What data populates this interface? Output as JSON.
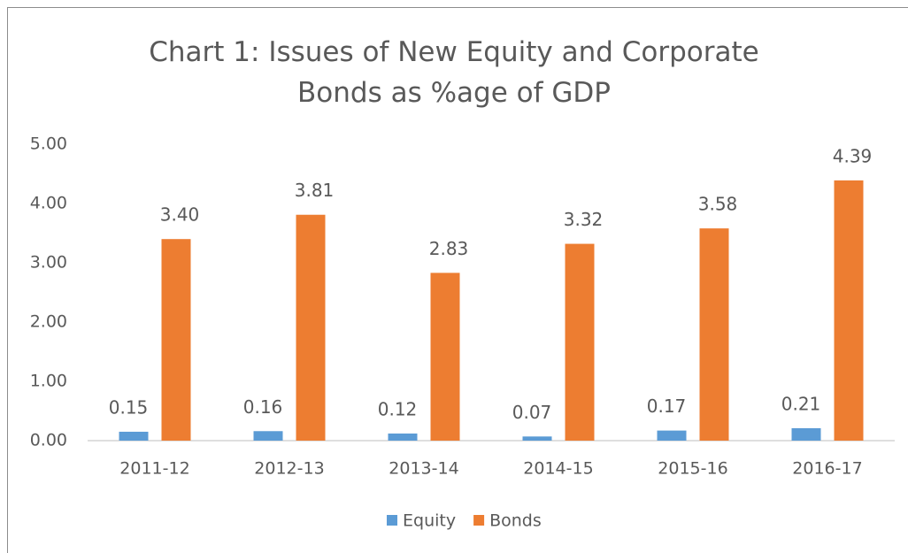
{
  "chart_data": {
    "type": "bar",
    "title": "Chart 1: Issues of New Equity and Corporate Bonds as %age of GDP",
    "categories": [
      "2011-12",
      "2012-13",
      "2013-14",
      "2014-15",
      "2015-16",
      "2016-17"
    ],
    "series": [
      {
        "name": "Equity",
        "color": "#5b9bd5",
        "values": [
          0.15,
          0.16,
          0.12,
          0.07,
          0.17,
          0.21
        ],
        "value_labels": [
          "0.15",
          "0.16",
          "0.12",
          "0.07",
          "0.17",
          "0.21"
        ]
      },
      {
        "name": "Bonds",
        "color": "#ed7d31",
        "values": [
          3.4,
          3.81,
          2.83,
          3.32,
          3.58,
          4.39
        ],
        "value_labels": [
          "3.40",
          "3.81",
          "2.83",
          "3.32",
          "3.58",
          "4.39"
        ]
      }
    ],
    "ylim": [
      0,
      5
    ],
    "yticks": [
      {
        "value": 0,
        "label": "0.00"
      },
      {
        "value": 1,
        "label": "1.00"
      },
      {
        "value": 2,
        "label": "2.00"
      },
      {
        "value": 3,
        "label": "3.00"
      },
      {
        "value": 4,
        "label": "4.00"
      },
      {
        "value": 5,
        "label": "5.00"
      }
    ],
    "grid": false,
    "legend": "bottom"
  }
}
